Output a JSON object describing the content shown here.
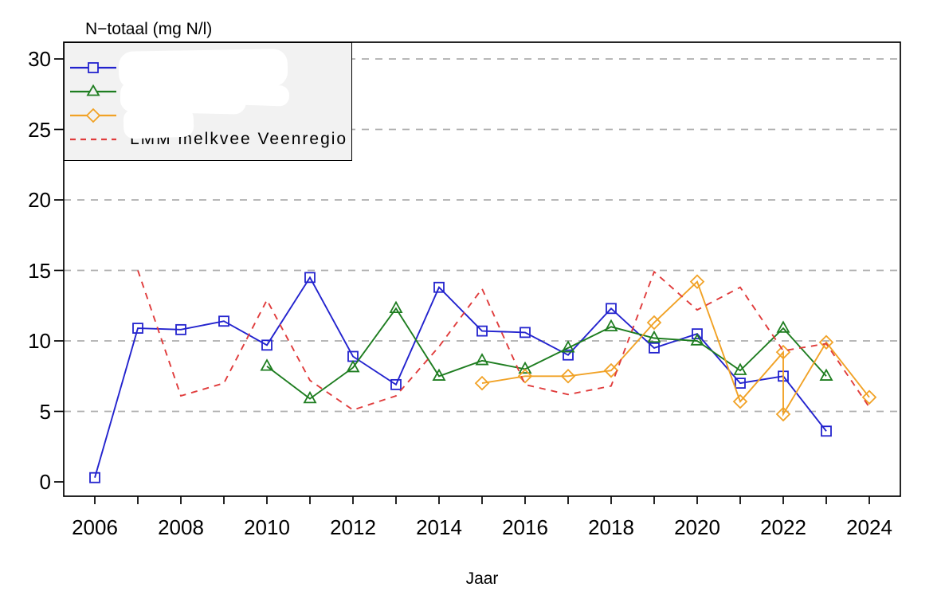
{
  "title": "N−totaal (mg N/l)",
  "xlabel": "Jaar",
  "colors": {
    "blue_series": "#2323CE",
    "green_series": "#1E7D20",
    "orange_series": "#F1A226",
    "red_dashed_series": "#E03C3C",
    "gridline": "#AFAFAF",
    "legend_background": "#F2F2F2",
    "axis": "#000000"
  },
  "legend": {
    "entries": [
      {
        "label": "",
        "redacted": true,
        "color": "#2323CE",
        "marker": "square",
        "line": "solid"
      },
      {
        "label": "",
        "redacted": true,
        "color": "#1E7D20",
        "marker": "triangle",
        "line": "solid"
      },
      {
        "label": "",
        "redacted": true,
        "color": "#F1A226",
        "marker": "diamond",
        "line": "solid"
      },
      {
        "label": "LMM melkvee Veenregio",
        "redacted": false,
        "color": "#E03C3C",
        "marker": "none",
        "line": "dashed"
      }
    ]
  },
  "chart_data": {
    "type": "line",
    "title": "N−totaal (mg N/l)",
    "xlabel": "Jaar",
    "ylabel": "N-totaal (mg N/l)",
    "ylim": [
      0,
      30
    ],
    "yticks": [
      0,
      5,
      10,
      15,
      20,
      25,
      30
    ],
    "xticks": [
      2006,
      2007,
      2008,
      2009,
      2010,
      2011,
      2012,
      2013,
      2014,
      2015,
      2016,
      2017,
      2018,
      2019,
      2020,
      2021,
      2022,
      2023,
      2024
    ],
    "xtick_labels": [
      2006,
      2008,
      2010,
      2012,
      2014,
      2016,
      2018,
      2020,
      2022,
      2024
    ],
    "grid": "horizontal dashed gridlines at ticks 5-30",
    "legend_position": "top-left",
    "series": [
      {
        "name": "",
        "label_redacted": true,
        "color": "#2323CE",
        "marker": "square",
        "line": "solid",
        "points": [
          [
            2006,
            0.3
          ],
          [
            2007,
            10.9
          ],
          [
            2008,
            10.8
          ],
          [
            2009,
            11.4
          ],
          [
            2010,
            9.7
          ],
          [
            2011,
            14.5
          ],
          [
            2012,
            8.9
          ],
          [
            2013,
            6.9
          ],
          [
            2014,
            13.8
          ],
          [
            2015,
            10.7
          ],
          [
            2016,
            10.6
          ],
          [
            2017,
            9.0
          ],
          [
            2018,
            12.3
          ],
          [
            2019,
            9.5
          ],
          [
            2020,
            10.5
          ],
          [
            2021,
            7.0
          ],
          [
            2022,
            7.5
          ],
          [
            2023,
            3.6
          ]
        ]
      },
      {
        "name": "",
        "label_redacted": true,
        "color": "#1E7D20",
        "marker": "triangle",
        "line": "solid",
        "points": [
          [
            2010,
            8.2
          ],
          [
            2011,
            5.9
          ],
          [
            2012,
            8.1
          ],
          [
            2013,
            12.3
          ],
          [
            2014,
            7.5
          ],
          [
            2015,
            8.6
          ],
          [
            2016,
            8.0
          ],
          [
            2017,
            9.5
          ],
          [
            2018,
            11.0
          ],
          [
            2019,
            10.2
          ],
          [
            2020,
            10.0
          ],
          [
            2021,
            7.9
          ],
          [
            2022,
            10.9
          ],
          [
            2023,
            7.5
          ]
        ]
      },
      {
        "name": "",
        "label_redacted": true,
        "color": "#F1A226",
        "marker": "diamond",
        "line": "solid",
        "points": [
          [
            2015,
            7.0
          ],
          [
            2016,
            7.5
          ],
          [
            2017,
            7.5
          ],
          [
            2018,
            7.9
          ],
          [
            2019,
            11.3
          ],
          [
            2020,
            14.2
          ],
          [
            2021,
            5.7
          ],
          [
            2022,
            9.2
          ],
          [
            2022,
            4.8
          ],
          [
            2023,
            9.9
          ],
          [
            2024,
            6.0
          ]
        ]
      },
      {
        "name": "LMM melkvee Veenregio",
        "label_redacted": false,
        "color": "#E03C3C",
        "marker": "none",
        "line": "dashed",
        "points": [
          [
            2007,
            15.0
          ],
          [
            2008,
            6.1
          ],
          [
            2009,
            7.0
          ],
          [
            2010,
            12.9
          ],
          [
            2011,
            7.2
          ],
          [
            2012,
            5.1
          ],
          [
            2013,
            6.1
          ],
          [
            2014,
            9.6
          ],
          [
            2015,
            13.7
          ],
          [
            2016,
            6.9
          ],
          [
            2017,
            6.2
          ],
          [
            2018,
            6.8
          ],
          [
            2019,
            14.9
          ],
          [
            2020,
            12.2
          ],
          [
            2021,
            13.8
          ],
          [
            2022,
            9.3
          ],
          [
            2023,
            9.8
          ],
          [
            2024,
            5.3
          ]
        ]
      }
    ]
  }
}
